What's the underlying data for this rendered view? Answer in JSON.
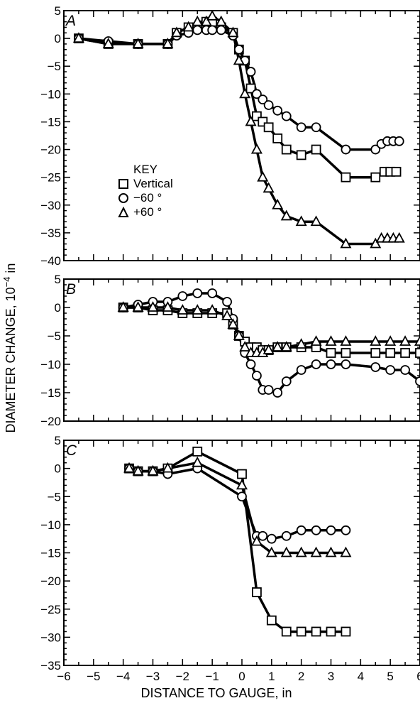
{
  "xlabel": "DISTANCE TO GAUGE, in",
  "ylabel": "DIAMETER CHANGE, 10",
  "ylabel_exp": "−4",
  "ylabel_unit": " in",
  "key": {
    "title": "KEY",
    "entries": [
      {
        "label": "Vertical",
        "marker": "square"
      },
      {
        "label": "−60 °",
        "marker": "circle"
      },
      {
        "label": "+60 °",
        "marker": "triangle"
      }
    ]
  },
  "chart_data": [
    {
      "type": "line",
      "panel_label": "A",
      "xlim": [
        -6,
        6
      ],
      "ylim": [
        -40,
        5
      ],
      "yticks": [
        5,
        0,
        -5,
        -10,
        -15,
        -20,
        -25,
        -30,
        -35,
        -40
      ],
      "series": [
        {
          "name": "Vertical",
          "marker": "square",
          "x": [
            -5.5,
            -4.5,
            -3.5,
            -2.5,
            -2.2,
            -1.8,
            -1.5,
            -1.2,
            -1.0,
            -0.7,
            -0.3,
            -0.1,
            0.1,
            0.3,
            0.5,
            0.7,
            0.9,
            1.2,
            1.5,
            2.0,
            2.5,
            3.5,
            4.5,
            4.8,
            5.0,
            5.2
          ],
          "y": [
            0,
            -1,
            -1,
            -1,
            1,
            2,
            2,
            3,
            3,
            2,
            1,
            -2,
            -4,
            -9,
            -14,
            -15,
            -16,
            -18,
            -20,
            -21,
            -20,
            -25,
            -25,
            -24,
            -24,
            -24
          ]
        },
        {
          "name": "−60 °",
          "marker": "circle",
          "x": [
            -5.5,
            -4.5,
            -3.5,
            -2.5,
            -2.2,
            -1.8,
            -1.5,
            -1.2,
            -1.0,
            -0.7,
            -0.3,
            -0.1,
            0.1,
            0.3,
            0.5,
            0.7,
            0.9,
            1.2,
            1.5,
            2.0,
            2.5,
            3.5,
            4.5,
            4.7,
            4.9,
            5.1,
            5.3
          ],
          "y": [
            0,
            -0.5,
            -1,
            -1,
            0.5,
            1,
            1.5,
            1.5,
            1.5,
            1.5,
            0.5,
            -2,
            -4,
            -6,
            -10,
            -11,
            -12,
            -13,
            -14,
            -16,
            -16,
            -20,
            -20,
            -19,
            -18.5,
            -18.5,
            -18.5
          ]
        },
        {
          "name": "+60 °",
          "marker": "triangle",
          "x": [
            -5.5,
            -4.5,
            -3.5,
            -2.5,
            -2.2,
            -1.8,
            -1.5,
            -1.2,
            -1.0,
            -0.7,
            -0.3,
            -0.1,
            0.1,
            0.3,
            0.5,
            0.7,
            0.9,
            1.2,
            1.5,
            2.0,
            2.5,
            3.5,
            4.5,
            4.7,
            4.9,
            5.1,
            5.3
          ],
          "y": [
            0,
            -1,
            -1,
            -1,
            1,
            2,
            3,
            3,
            4,
            3,
            1,
            -4,
            -10,
            -15,
            -20,
            -25,
            -27,
            -30,
            -32,
            -33,
            -33,
            -37,
            -37,
            -36,
            -36,
            -36,
            -36
          ]
        }
      ]
    },
    {
      "type": "line",
      "panel_label": "B",
      "xlim": [
        -6,
        6
      ],
      "ylim": [
        -20,
        5
      ],
      "yticks": [
        5,
        0,
        -5,
        -10,
        -15,
        -20
      ],
      "series": [
        {
          "name": "Vertical",
          "marker": "square",
          "x": [
            -4,
            -3.5,
            -3,
            -2.5,
            -2,
            -1.5,
            -1,
            -0.5,
            -0.3,
            -0.1,
            0.1,
            0.3,
            0.5,
            0.7,
            0.9,
            1.2,
            1.5,
            2.0,
            2.5,
            3.0,
            3.5,
            4.5,
            5.0,
            5.5,
            6.0
          ],
          "y": [
            0,
            0,
            -0.5,
            -0.5,
            -1,
            -1,
            -1,
            -1,
            -3,
            -5,
            -6,
            -7,
            -7,
            -7.5,
            -7.5,
            -7,
            -7,
            -7,
            -7,
            -8,
            -8,
            -8,
            -8,
            -8,
            -8
          ]
        },
        {
          "name": "−60 °",
          "marker": "circle",
          "x": [
            -4,
            -3.5,
            -3,
            -2.5,
            -2,
            -1.5,
            -1,
            -0.5,
            -0.3,
            -0.1,
            0.1,
            0.3,
            0.5,
            0.7,
            0.9,
            1.2,
            1.5,
            2.0,
            2.5,
            3.0,
            3.5,
            4.5,
            5.0,
            5.5,
            6.0
          ],
          "y": [
            0,
            0.5,
            1,
            1,
            2,
            2.5,
            2.5,
            1,
            -2,
            -5,
            -8,
            -10,
            -12,
            -14.5,
            -14.5,
            -15,
            -13,
            -11,
            -10,
            -10,
            -10,
            -10.5,
            -11,
            -11,
            -13
          ]
        },
        {
          "name": "+60 °",
          "marker": "triangle",
          "x": [
            -4,
            -3.5,
            -3,
            -2.5,
            -2,
            -1.5,
            -1,
            -0.5,
            -0.3,
            -0.1,
            0.1,
            0.3,
            0.5,
            0.7,
            0.9,
            1.2,
            1.5,
            2.0,
            2.5,
            3.0,
            3.5,
            4.5,
            5.0,
            5.5,
            6.0
          ],
          "y": [
            0,
            0,
            0,
            0,
            -0.5,
            -0.5,
            -0.5,
            -1.5,
            -3,
            -5,
            -7,
            -8,
            -8,
            -8,
            -7.5,
            -7,
            -7,
            -6.5,
            -6,
            -6,
            -6,
            -6,
            -6,
            -6,
            -6
          ]
        }
      ]
    },
    {
      "type": "line",
      "panel_label": "C",
      "xlim": [
        -6,
        6
      ],
      "ylim": [
        -35,
        5
      ],
      "yticks": [
        5,
        0,
        -5,
        -10,
        -15,
        -20,
        -25,
        -30,
        -35
      ],
      "xticks": [
        -6,
        -5,
        -4,
        -3,
        -2,
        -1,
        0,
        1,
        2,
        3,
        4,
        5,
        6
      ],
      "series": [
        {
          "name": "Vertical",
          "marker": "square",
          "x": [
            -3.8,
            -3.5,
            -3.0,
            -2.5,
            -1.5,
            0.0,
            0.5,
            1.0,
            1.5,
            2.0,
            2.5,
            3.0,
            3.5
          ],
          "y": [
            0,
            -0.5,
            -0.5,
            0,
            3,
            -1,
            -22,
            -27,
            -29,
            -29,
            -29,
            -29,
            -29
          ]
        },
        {
          "name": "−60 °",
          "marker": "circle",
          "x": [
            -3.8,
            -3.5,
            -3.0,
            -2.5,
            -1.5,
            0.0,
            0.5,
            0.7,
            1.0,
            1.5,
            2.0,
            2.5,
            3.0,
            3.5
          ],
          "y": [
            0,
            -0.5,
            -0.5,
            -1,
            0,
            -5,
            -12,
            -12,
            -12.5,
            -12,
            -11,
            -11,
            -11,
            -11
          ]
        },
        {
          "name": "+60 °",
          "marker": "triangle",
          "x": [
            -3.8,
            -3.5,
            -3.0,
            -2.5,
            -1.5,
            0.0,
            0.5,
            1.0,
            1.5,
            2.0,
            2.5,
            3.0,
            3.5
          ],
          "y": [
            0,
            -0.5,
            -0.5,
            0,
            1,
            -3,
            -13,
            -15,
            -15,
            -15,
            -15,
            -15,
            -15
          ]
        }
      ]
    }
  ]
}
